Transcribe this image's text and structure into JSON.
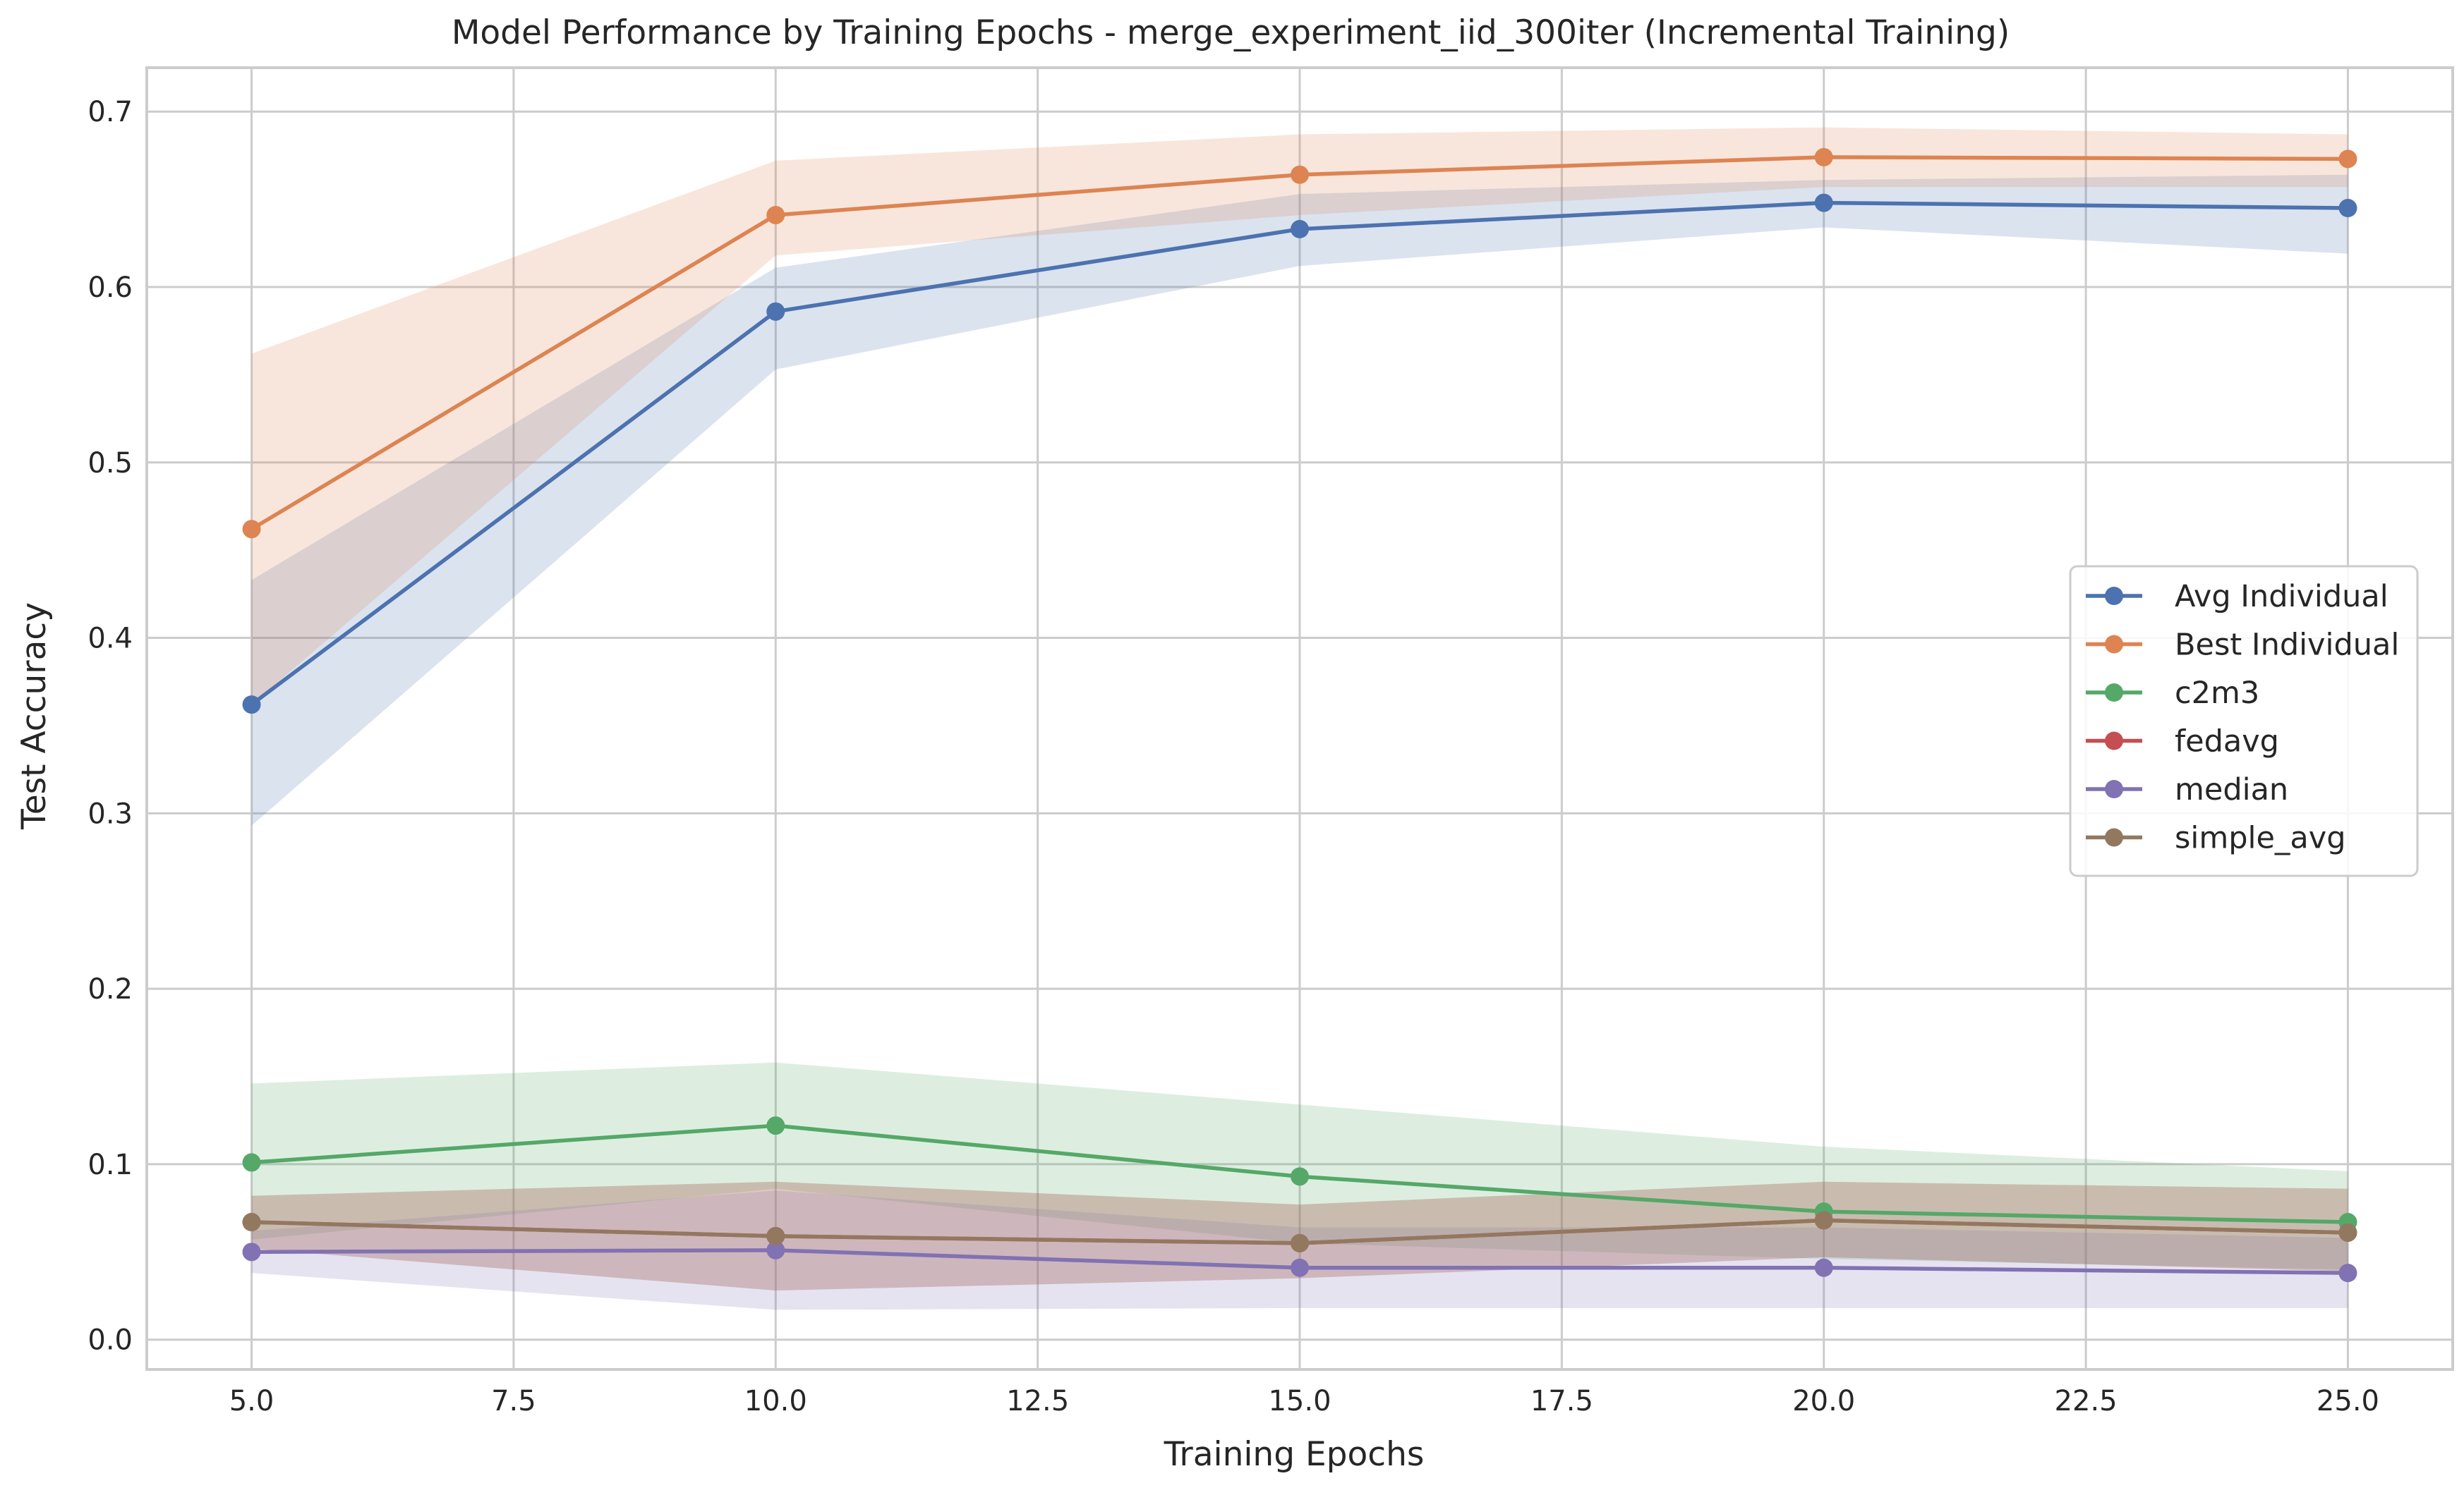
{
  "chart_data": {
    "type": "line",
    "title": "Model Performance by Training Epochs - merge_experiment_iid_300iter (Incremental Training)",
    "xlabel": "Training Epochs",
    "ylabel": "Test Accuracy",
    "xlim": [
      4.0,
      26.0
    ],
    "ylim": [
      -0.017,
      0.725
    ],
    "xticks": [
      5.0,
      7.5,
      10.0,
      12.5,
      15.0,
      17.5,
      20.0,
      22.5,
      25.0
    ],
    "xtick_labels": [
      "5.0",
      "7.5",
      "10.0",
      "12.5",
      "15.0",
      "17.5",
      "20.0",
      "22.5",
      "25.0"
    ],
    "yticks": [
      0.0,
      0.1,
      0.2,
      0.3,
      0.4,
      0.5,
      0.6,
      0.7
    ],
    "ytick_labels": [
      "0.0",
      "0.1",
      "0.2",
      "0.3",
      "0.4",
      "0.5",
      "0.6",
      "0.7"
    ],
    "grid": true,
    "legend_position": "center-right",
    "x": [
      5,
      10,
      15,
      20,
      25
    ],
    "series": [
      {
        "name": "Avg Individual",
        "color": "#4c72b0",
        "values": [
          0.362,
          0.586,
          0.633,
          0.648,
          0.645
        ],
        "band_lower": [
          0.293,
          0.553,
          0.612,
          0.634,
          0.619
        ],
        "band_upper": [
          0.433,
          0.611,
          0.653,
          0.661,
          0.664
        ]
      },
      {
        "name": "Best Individual",
        "color": "#dd8452",
        "values": [
          0.462,
          0.641,
          0.664,
          0.674,
          0.673
        ],
        "band_lower": [
          0.362,
          0.618,
          0.641,
          0.657,
          0.657
        ],
        "band_upper": [
          0.562,
          0.672,
          0.687,
          0.691,
          0.687
        ]
      },
      {
        "name": "c2m3",
        "color": "#55a868",
        "values": [
          0.101,
          0.122,
          0.093,
          0.073,
          0.067
        ],
        "band_lower": [
          0.057,
          0.086,
          0.055,
          0.046,
          0.04
        ],
        "band_upper": [
          0.146,
          0.158,
          0.134,
          0.11,
          0.096
        ]
      },
      {
        "name": "fedavg",
        "color": "#c44e52",
        "values": [
          0.067,
          0.059,
          0.055,
          0.068,
          0.061
        ],
        "band_lower": [
          0.052,
          0.028,
          0.035,
          0.047,
          0.039
        ],
        "band_upper": [
          0.082,
          0.09,
          0.077,
          0.09,
          0.086
        ]
      },
      {
        "name": "median",
        "color": "#8172b3",
        "values": [
          0.05,
          0.051,
          0.041,
          0.041,
          0.038
        ],
        "band_lower": [
          0.038,
          0.017,
          0.018,
          0.018,
          0.018
        ],
        "band_upper": [
          0.062,
          0.085,
          0.064,
          0.064,
          0.058
        ]
      },
      {
        "name": "simple_avg",
        "color": "#937860",
        "values": [
          0.067,
          0.059,
          0.055,
          0.068,
          0.061
        ],
        "band_lower": [
          0.052,
          0.028,
          0.035,
          0.047,
          0.039
        ],
        "band_upper": [
          0.082,
          0.09,
          0.077,
          0.09,
          0.086
        ]
      }
    ]
  }
}
